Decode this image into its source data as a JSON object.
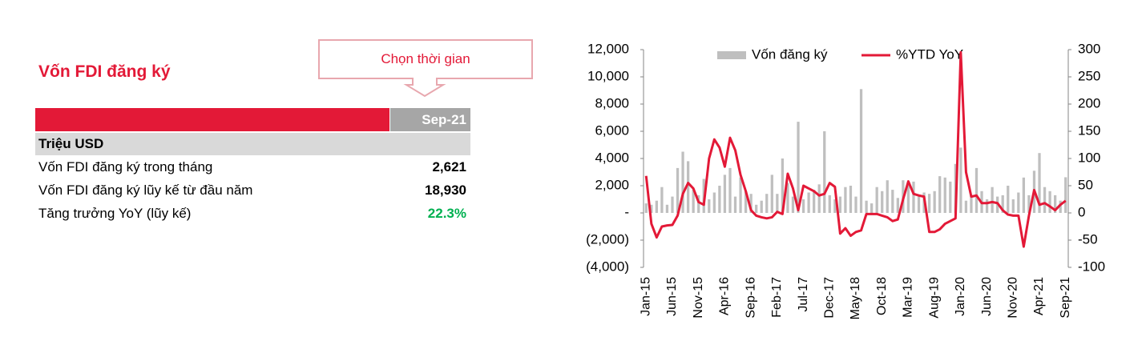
{
  "panel": {
    "title": "Vốn FDI đăng ký",
    "button": "Chọn thời gian"
  },
  "table": {
    "header": {
      "period": "Sep-21"
    },
    "unit": "Triệu USD",
    "rows": [
      [
        "Vốn FDI đăng ký trong tháng",
        "2,621"
      ],
      [
        "Vốn FDI đăng ký lũy kế từ đầu năm",
        "18,930"
      ],
      [
        "Tăng trưởng YoY (lũy kế)",
        "22.3%"
      ]
    ]
  },
  "chart_data": {
    "type": "bar-line",
    "categories": [
      "Jan-15",
      null,
      null,
      null,
      null,
      "Jun-15",
      null,
      null,
      null,
      null,
      "Nov-15",
      null,
      null,
      null,
      null,
      "Apr-16",
      null,
      null,
      null,
      null,
      "Sep-16",
      null,
      null,
      null,
      null,
      "Feb-17",
      null,
      null,
      null,
      null,
      "Jul-17",
      null,
      null,
      null,
      null,
      "Dec-17",
      null,
      null,
      null,
      null,
      "May-18",
      null,
      null,
      null,
      null,
      "Oct-18",
      null,
      null,
      null,
      null,
      "Mar-19",
      null,
      null,
      null,
      null,
      "Aug-19",
      null,
      null,
      null,
      null,
      "Jan-20",
      null,
      null,
      null,
      null,
      "Jun-20",
      null,
      null,
      null,
      null,
      "Nov-20",
      null,
      null,
      null,
      null,
      "Apr-21",
      null,
      null,
      null,
      null,
      "Sep-21"
    ],
    "series": [
      {
        "name": "Vốn đăng ký",
        "type": "bar",
        "color": "#bfbfbf",
        "values": [
          700,
          600,
          900,
          1900,
          600,
          1200,
          3300,
          4500,
          3800,
          1700,
          1300,
          2500,
          1000,
          1500,
          2000,
          2800,
          3300,
          1200,
          2600,
          1600,
          1400,
          600,
          900,
          1400,
          2800,
          1400,
          4000,
          2200,
          1200,
          6700,
          1000,
          1500,
          1700,
          2100,
          6000,
          1300,
          1000,
          1200,
          1900,
          2000,
          1200,
          9100,
          900,
          700,
          1900,
          1600,
          2400,
          1700,
          1100,
          2400,
          2100,
          2300,
          1200,
          1500,
          1400,
          1600,
          2700,
          2600,
          2300,
          3600,
          4800,
          900,
          1300,
          3300,
          1600,
          1000,
          1900,
          1200,
          1300,
          2000,
          1000,
          1500,
          2600,
          1300,
          3100,
          4400,
          1900,
          1600,
          1300,
          900,
          2621
        ]
      },
      {
        "name": "%YTD YoY",
        "type": "line",
        "axis": "y2",
        "color": "#e31937",
        "values": [
          68,
          -20,
          -45,
          -25,
          -23,
          -22,
          -5,
          35,
          55,
          45,
          20,
          15,
          100,
          135,
          120,
          85,
          138,
          115,
          70,
          40,
          5,
          -5,
          -8,
          -10,
          -8,
          2,
          -2,
          72,
          45,
          5,
          50,
          45,
          40,
          32,
          35,
          55,
          48,
          -38,
          -28,
          -42,
          -35,
          -32,
          -2,
          -2,
          -2,
          -5,
          -8,
          -15,
          -12,
          25,
          58,
          35,
          32,
          30,
          -35,
          -35,
          -30,
          -20,
          -15,
          -10,
          295,
          75,
          30,
          32,
          18,
          18,
          20,
          18,
          5,
          -3,
          -5,
          -5,
          -62,
          -5,
          42,
          15,
          18,
          12,
          5,
          15,
          22.3
        ]
      }
    ],
    "ylim": [
      -4000,
      12000
    ],
    "yticks": [
      {
        "value": -4000,
        "label": "(4,000)"
      },
      {
        "value": -2000,
        "label": "(2,000)"
      },
      {
        "value": 0,
        "label": "-"
      },
      {
        "value": 2000,
        "label": "2,000"
      },
      {
        "value": 4000,
        "label": "4,000"
      },
      {
        "value": 6000,
        "label": "6,000"
      },
      {
        "value": 8000,
        "label": "8,000"
      },
      {
        "value": 10000,
        "label": "10,000"
      },
      {
        "value": 12000,
        "label": "12,000"
      }
    ],
    "y2lim": [
      -100,
      300
    ],
    "y2ticks": [
      -100,
      -50,
      0,
      50,
      100,
      150,
      200,
      250,
      300
    ],
    "legend": "top"
  }
}
